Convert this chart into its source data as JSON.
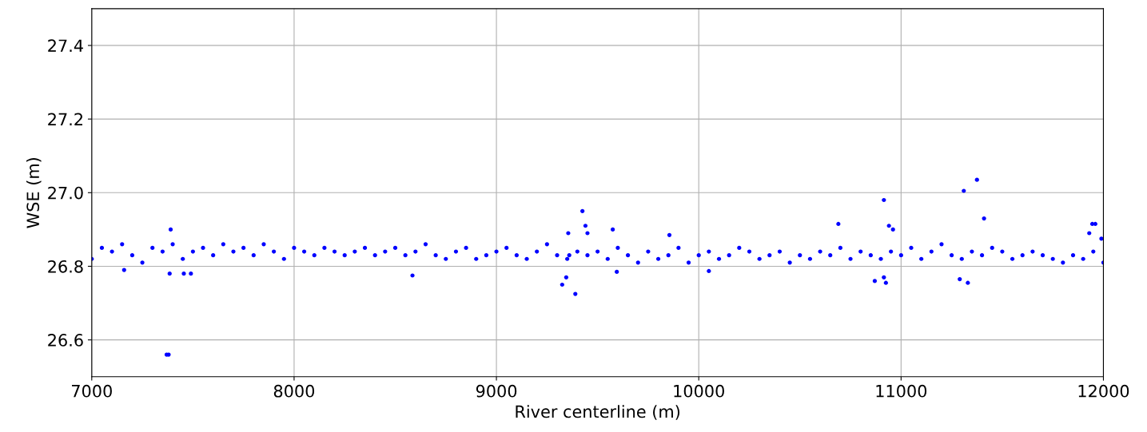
{
  "chart_data": {
    "type": "scatter",
    "xlabel": "River centerline (m)",
    "ylabel": "WSE (m)",
    "xlim": [
      7000,
      12000
    ],
    "ylim": [
      26.5,
      27.5
    ],
    "xticks": [
      7000,
      8000,
      9000,
      10000,
      11000,
      12000
    ],
    "yticks": [
      26.6,
      26.8,
      {
        "value": 27.0,
        "label": "27.0"
      },
      27.2,
      27.4
    ],
    "grid": true,
    "marker": "circle",
    "series": [
      {
        "color": "#0000ff",
        "x": [
          7000,
          7050,
          7100,
          7150,
          7200,
          7250,
          7300,
          7350,
          7400,
          7450,
          7500,
          7550,
          7600,
          7650,
          7700,
          7750,
          7800,
          7850,
          7900,
          7950,
          8000,
          8050,
          8100,
          8150,
          8200,
          8250,
          8300,
          8350,
          8400,
          8450,
          8500,
          8550,
          8600,
          8650,
          8700,
          8750,
          8800,
          8850,
          8900,
          8950,
          9000,
          9050,
          9100,
          9150,
          9200,
          9250,
          9300,
          9350,
          9400,
          9450,
          9500,
          9550,
          9600,
          9650,
          9700,
          9750,
          9800,
          9850,
          9900,
          9950,
          10000,
          10050,
          10100,
          10150,
          10200,
          10250,
          10300,
          10350,
          10400,
          10450,
          10500,
          10550,
          10600,
          10650,
          10700,
          10750,
          10800,
          10850,
          10900,
          10950,
          11000,
          11050,
          11100,
          11150,
          11200,
          11250,
          11300,
          11350,
          11400,
          11450,
          11500,
          11550,
          11600,
          11650,
          11700,
          11750,
          11800,
          11850,
          11900,
          11950,
          12000,
          7370,
          7380,
          7385,
          7390,
          7455,
          7490,
          7160,
          8585,
          9325,
          9345,
          9390,
          9360,
          9355,
          9425,
          9440,
          9450,
          9575,
          9595,
          9855,
          10050,
          10690,
          10915,
          10940,
          10960,
          10870,
          10915,
          10925,
          11310,
          11375,
          11410,
          11290,
          11330,
          11930,
          11945,
          11960,
          11990
        ],
        "values": [
          26.82,
          26.85,
          26.84,
          26.86,
          26.83,
          26.81,
          26.85,
          26.84,
          26.86,
          26.82,
          26.84,
          26.85,
          26.83,
          26.86,
          26.84,
          26.85,
          26.83,
          26.86,
          26.84,
          26.82,
          26.85,
          26.84,
          26.83,
          26.85,
          26.84,
          26.83,
          26.84,
          26.85,
          26.83,
          26.84,
          26.85,
          26.83,
          26.84,
          26.86,
          26.83,
          26.82,
          26.84,
          26.85,
          26.82,
          26.83,
          26.84,
          26.85,
          26.83,
          26.82,
          26.84,
          26.86,
          26.83,
          26.82,
          26.84,
          26.83,
          26.84,
          26.82,
          26.85,
          26.83,
          26.81,
          26.84,
          26.82,
          26.83,
          26.85,
          26.81,
          26.83,
          26.84,
          26.82,
          26.83,
          26.85,
          26.84,
          26.82,
          26.83,
          26.84,
          26.81,
          26.83,
          26.82,
          26.84,
          26.83,
          26.85,
          26.82,
          26.84,
          26.83,
          26.82,
          26.84,
          26.83,
          26.85,
          26.82,
          26.84,
          26.86,
          26.83,
          26.82,
          26.84,
          26.83,
          26.85,
          26.84,
          26.82,
          26.83,
          26.84,
          26.83,
          26.82,
          26.81,
          26.83,
          26.82,
          26.84,
          26.81,
          26.56,
          26.56,
          26.78,
          26.9,
          26.78,
          26.78,
          26.79,
          26.775,
          26.75,
          26.77,
          26.725,
          26.83,
          26.89,
          26.95,
          26.91,
          26.89,
          26.9,
          26.785,
          26.885,
          26.787,
          26.915,
          26.98,
          26.91,
          26.9,
          26.76,
          26.77,
          26.755,
          27.005,
          27.035,
          26.93,
          26.765,
          26.755,
          26.89,
          26.915,
          26.915,
          26.875
        ]
      }
    ]
  }
}
